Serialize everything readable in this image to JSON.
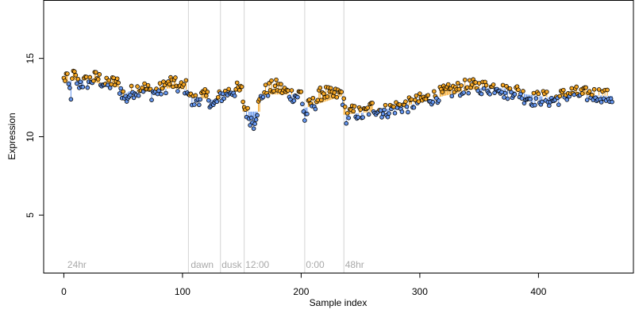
{
  "chart_data": {
    "type": "scatter",
    "title": "",
    "xlabel": "Sample index",
    "ylabel": "Expression",
    "xlim": [
      -17,
      480
    ],
    "ylim": [
      1.3,
      18.7
    ],
    "x_ticks": [
      0,
      100,
      200,
      300,
      400
    ],
    "y_ticks": [
      5,
      10,
      15
    ],
    "grid": false,
    "legend": "none",
    "colors": {
      "above_trend": "#f5a623",
      "below_trend": "#6495ed",
      "point_outline": "#000000",
      "divider": "#d3d3d3",
      "phase_label": "#a9a9a9"
    },
    "phase_dividers": [
      {
        "x": 105,
        "label": "dawn"
      },
      {
        "x": 132,
        "label": "dusk"
      },
      {
        "x": 152,
        "label": "12:00"
      },
      {
        "x": 203,
        "label": "0:00"
      },
      {
        "x": 236,
        "label": "48hr"
      }
    ],
    "phase_labels": [
      {
        "x": 3,
        "text": "24hr"
      },
      {
        "x": 107,
        "text": "dawn"
      },
      {
        "x": 133,
        "text": "dusk"
      },
      {
        "x": 153,
        "text": "12:00"
      },
      {
        "x": 204,
        "text": "0:00"
      },
      {
        "x": 237,
        "text": "48hr"
      }
    ],
    "trend": [
      [
        0,
        13.5
      ],
      [
        10,
        13.6
      ],
      [
        20,
        13.6
      ],
      [
        30,
        13.4
      ],
      [
        40,
        13.3
      ],
      [
        48,
        13.1
      ],
      [
        50,
        12.6
      ],
      [
        55,
        12.9
      ],
      [
        70,
        12.9
      ],
      [
        90,
        13.1
      ],
      [
        104,
        13.0
      ],
      [
        106,
        12.6
      ],
      [
        130,
        12.3
      ],
      [
        132,
        12.8
      ],
      [
        150,
        12.9
      ],
      [
        151,
        11.6
      ],
      [
        165,
        11.6
      ],
      [
        166,
        12.7
      ],
      [
        200,
        12.7
      ],
      [
        202,
        11.8
      ],
      [
        235,
        12.6
      ],
      [
        236,
        11.4
      ],
      [
        260,
        11.6
      ],
      [
        290,
        12.0
      ],
      [
        320,
        12.6
      ],
      [
        350,
        13.1
      ],
      [
        370,
        13.1
      ],
      [
        390,
        12.7
      ],
      [
        410,
        12.5
      ],
      [
        430,
        12.7
      ],
      [
        462,
        12.6
      ]
    ],
    "anchors": [
      [
        0,
        13.6
      ],
      [
        2,
        13.9
      ],
      [
        4,
        13.2
      ],
      [
        6,
        12.7
      ],
      [
        8,
        14.0
      ],
      [
        12,
        13.4
      ],
      [
        20,
        13.5
      ],
      [
        28,
        13.8
      ],
      [
        36,
        13.3
      ],
      [
        44,
        13.5
      ],
      [
        48,
        13.0
      ],
      [
        52,
        12.4
      ],
      [
        58,
        12.9
      ],
      [
        66,
        13.2
      ],
      [
        74,
        12.8
      ],
      [
        82,
        13.0
      ],
      [
        90,
        13.5
      ],
      [
        98,
        13.1
      ],
      [
        104,
        13.2
      ],
      [
        108,
        12.2
      ],
      [
        116,
        12.6
      ],
      [
        122,
        12.5
      ],
      [
        126,
        11.9
      ],
      [
        132,
        12.6
      ],
      [
        140,
        12.9
      ],
      [
        146,
        13.0
      ],
      [
        150,
        12.9
      ],
      [
        152,
        11.9
      ],
      [
        156,
        11.3
      ],
      [
        160,
        10.9
      ],
      [
        164,
        12.0
      ],
      [
        168,
        12.8
      ],
      [
        174,
        13.1
      ],
      [
        180,
        13.2
      ],
      [
        188,
        12.8
      ],
      [
        196,
        12.6
      ],
      [
        200,
        12.8
      ],
      [
        203,
        11.1
      ],
      [
        206,
        11.9
      ],
      [
        212,
        12.2
      ],
      [
        218,
        12.9
      ],
      [
        226,
        12.6
      ],
      [
        234,
        12.8
      ],
      [
        238,
        11.3
      ],
      [
        244,
        11.6
      ],
      [
        252,
        11.4
      ],
      [
        260,
        11.9
      ],
      [
        270,
        11.6
      ],
      [
        280,
        11.9
      ],
      [
        290,
        12.0
      ],
      [
        300,
        12.3
      ],
      [
        310,
        12.5
      ],
      [
        320,
        12.8
      ],
      [
        330,
        13.0
      ],
      [
        340,
        13.2
      ],
      [
        350,
        13.2
      ],
      [
        360,
        13.1
      ],
      [
        366,
        13.3
      ],
      [
        372,
        12.8
      ],
      [
        380,
        13.0
      ],
      [
        388,
        12.6
      ],
      [
        396,
        12.4
      ],
      [
        404,
        12.5
      ],
      [
        412,
        12.3
      ],
      [
        420,
        12.6
      ],
      [
        428,
        12.8
      ],
      [
        436,
        12.7
      ],
      [
        444,
        12.7
      ],
      [
        452,
        12.7
      ],
      [
        460,
        12.5
      ]
    ]
  }
}
